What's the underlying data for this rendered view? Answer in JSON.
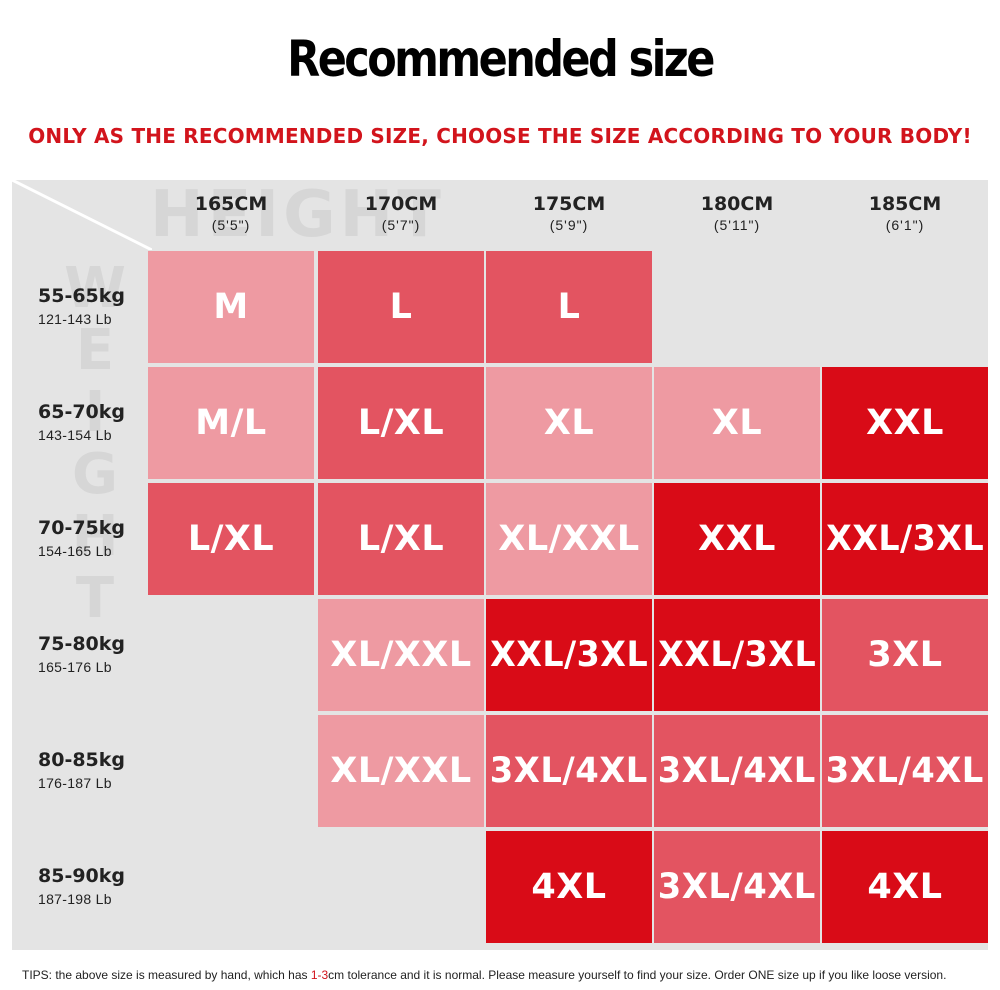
{
  "title": "Recommended size",
  "subtitle": "ONLY AS THE RECOMMENDED SIZE, CHOOSE THE SIZE ACCORDING TO YOUR BODY!",
  "watermark": {
    "height": "HEIGHT",
    "weight": "WEIGHT"
  },
  "colors": {
    "light": "#ee9aa2",
    "mid": "#e35461",
    "dark": "#d90b17",
    "empty": "#e4e4e4",
    "accent": "#d2141c"
  },
  "columns": [
    {
      "cm": "165CM",
      "ft": "(5'5\")"
    },
    {
      "cm": "170CM",
      "ft": "(5'7\")"
    },
    {
      "cm": "175CM",
      "ft": "(5'9\")"
    },
    {
      "cm": "180CM",
      "ft": "(5'11\")"
    },
    {
      "cm": "185CM",
      "ft": "(6'1\")"
    }
  ],
  "rows": [
    {
      "kg": "55-65kg",
      "lb": "121-143 Lb",
      "cells": [
        {
          "size": "M",
          "shade": "light"
        },
        {
          "size": "L",
          "shade": "mid"
        },
        {
          "size": "L",
          "shade": "mid"
        },
        {
          "size": "",
          "shade": "empty"
        },
        {
          "size": "",
          "shade": "empty"
        }
      ]
    },
    {
      "kg": "65-70kg",
      "lb": "143-154 Lb",
      "cells": [
        {
          "size": "M/L",
          "shade": "light"
        },
        {
          "size": "L/XL",
          "shade": "mid"
        },
        {
          "size": "XL",
          "shade": "light"
        },
        {
          "size": "XL",
          "shade": "light"
        },
        {
          "size": "XXL",
          "shade": "dark"
        }
      ]
    },
    {
      "kg": "70-75kg",
      "lb": "154-165 Lb",
      "cells": [
        {
          "size": "L/XL",
          "shade": "mid"
        },
        {
          "size": "L/XL",
          "shade": "mid"
        },
        {
          "size": "XL/XXL",
          "shade": "light"
        },
        {
          "size": "XXL",
          "shade": "dark"
        },
        {
          "size": "XXL/3XL",
          "shade": "dark"
        }
      ]
    },
    {
      "kg": "75-80kg",
      "lb": "165-176 Lb",
      "cells": [
        {
          "size": "",
          "shade": "empty"
        },
        {
          "size": "XL/XXL",
          "shade": "light"
        },
        {
          "size": "XXL/3XL",
          "shade": "dark"
        },
        {
          "size": "XXL/3XL",
          "shade": "dark"
        },
        {
          "size": "3XL",
          "shade": "mid"
        }
      ]
    },
    {
      "kg": "80-85kg",
      "lb": "176-187 Lb",
      "cells": [
        {
          "size": "",
          "shade": "empty"
        },
        {
          "size": "XL/XXL",
          "shade": "light"
        },
        {
          "size": "3XL/4XL",
          "shade": "mid"
        },
        {
          "size": "3XL/4XL",
          "shade": "mid"
        },
        {
          "size": "3XL/4XL",
          "shade": "mid"
        }
      ]
    },
    {
      "kg": "85-90kg",
      "lb": "187-198 Lb",
      "cells": [
        {
          "size": "",
          "shade": "empty"
        },
        {
          "size": "",
          "shade": "empty"
        },
        {
          "size": "4XL",
          "shade": "dark"
        },
        {
          "size": "3XL/4XL",
          "shade": "mid"
        },
        {
          "size": "4XL",
          "shade": "dark"
        }
      ]
    }
  ],
  "tips": {
    "before": "TIPS:  the above size is measured by hand, which has ",
    "highlight": "1-3",
    "after": "cm tolerance and it is normal. Please measure yourself to find your size. Order ONE size up if you like loose version."
  }
}
